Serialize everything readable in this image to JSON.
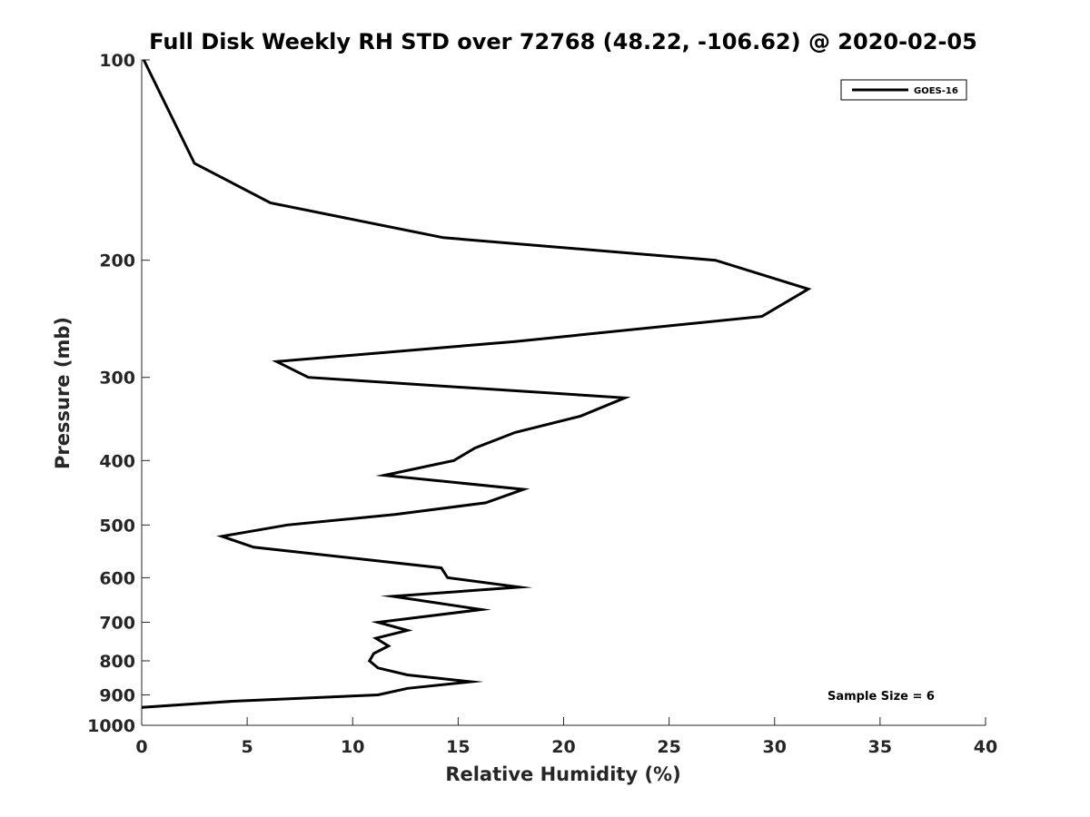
{
  "chart_data": {
    "type": "line",
    "title": "Full Disk Weekly RH STD over 72768 (48.22, -106.62) @ 2020-02-05",
    "xlabel": "Relative Humidity (%)",
    "ylabel": "Pressure (mb)",
    "xlim": [
      0,
      40
    ],
    "ylim": [
      100,
      1000
    ],
    "y_scale": "log",
    "y_reversed": true,
    "grid": false,
    "legend_position": "top-right",
    "x_ticks": [
      "0",
      "5",
      "10",
      "15",
      "20",
      "25",
      "30",
      "35",
      "40"
    ],
    "y_ticks": [
      "100",
      "200",
      "300",
      "400",
      "500",
      "600",
      "700",
      "800",
      "900",
      "1000"
    ],
    "series": [
      {
        "name": "GOES-16",
        "color": "#000000",
        "x": [
          0.1,
          2.5,
          6.1,
          14.3,
          27.2,
          31.6,
          29.4,
          17.7,
          6.4,
          7.9,
          22.9,
          20.8,
          17.7,
          15.8,
          14.8,
          11.5,
          18.1,
          16.3,
          12.0,
          6.9,
          3.8,
          5.3,
          14.2,
          14.5,
          17.9,
          11.9,
          16.1,
          11.2,
          12.6,
          11.1,
          11.7,
          11.0,
          10.8,
          11.2,
          12.6,
          15.6,
          12.6,
          11.2,
          4.3,
          0.0
        ],
        "y": [
          100,
          143,
          164,
          185,
          200,
          221,
          243,
          265,
          284,
          300,
          322,
          343,
          363,
          383,
          400,
          421,
          442,
          463,
          482,
          500,
          520,
          540,
          580,
          600,
          620,
          640,
          670,
          700,
          720,
          740,
          760,
          780,
          800,
          820,
          840,
          860,
          880,
          900,
          920,
          940
        ]
      }
    ],
    "annotation": "Sample Size = 6"
  }
}
